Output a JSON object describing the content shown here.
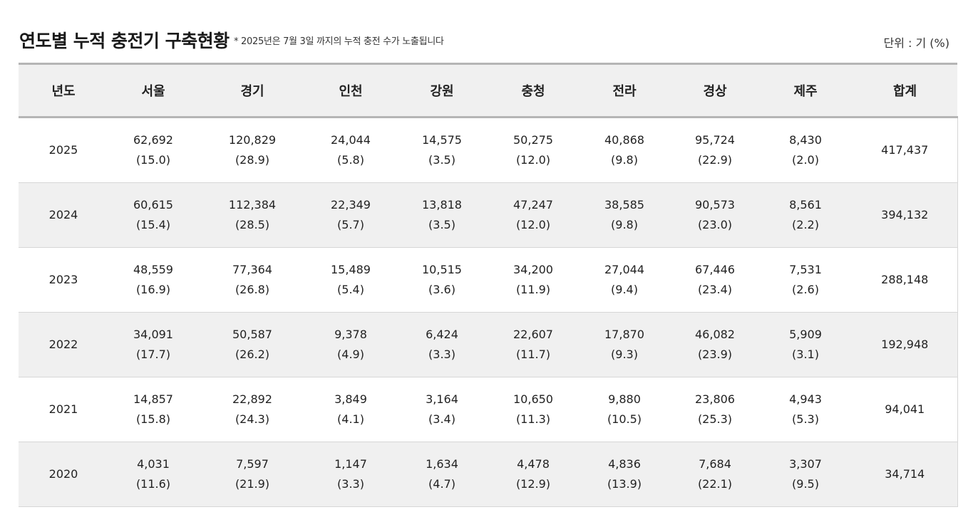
{
  "title": "연도별 누적 충전기 구축현황",
  "note": "* 2025년은 7월 3일 까지의 누적 충전 수가 노출됩니다",
  "unit": "단위 : 기 (%)",
  "table": {
    "headers": [
      "년도",
      "서울",
      "경기",
      "인천",
      "강원",
      "충청",
      "전라",
      "경상",
      "제주",
      "합계"
    ],
    "rows": [
      {
        "year": "2025",
        "cells": [
          {
            "value": "62,692",
            "pct": "(15.0)"
          },
          {
            "value": "120,829",
            "pct": "(28.9)"
          },
          {
            "value": "24,044",
            "pct": "(5.8)"
          },
          {
            "value": "14,575",
            "pct": "(3.5)"
          },
          {
            "value": "50,275",
            "pct": "(12.0)"
          },
          {
            "value": "40,868",
            "pct": "(9.8)"
          },
          {
            "value": "95,724",
            "pct": "(22.9)"
          },
          {
            "value": "8,430",
            "pct": "(2.0)"
          }
        ],
        "total": "417,437"
      },
      {
        "year": "2024",
        "cells": [
          {
            "value": "60,615",
            "pct": "(15.4)"
          },
          {
            "value": "112,384",
            "pct": "(28.5)"
          },
          {
            "value": "22,349",
            "pct": "(5.7)"
          },
          {
            "value": "13,818",
            "pct": "(3.5)"
          },
          {
            "value": "47,247",
            "pct": "(12.0)"
          },
          {
            "value": "38,585",
            "pct": "(9.8)"
          },
          {
            "value": "90,573",
            "pct": "(23.0)"
          },
          {
            "value": "8,561",
            "pct": "(2.2)"
          }
        ],
        "total": "394,132"
      },
      {
        "year": "2023",
        "cells": [
          {
            "value": "48,559",
            "pct": "(16.9)"
          },
          {
            "value": "77,364",
            "pct": "(26.8)"
          },
          {
            "value": "15,489",
            "pct": "(5.4)"
          },
          {
            "value": "10,515",
            "pct": "(3.6)"
          },
          {
            "value": "34,200",
            "pct": "(11.9)"
          },
          {
            "value": "27,044",
            "pct": "(9.4)"
          },
          {
            "value": "67,446",
            "pct": "(23.4)"
          },
          {
            "value": "7,531",
            "pct": "(2.6)"
          }
        ],
        "total": "288,148"
      },
      {
        "year": "2022",
        "cells": [
          {
            "value": "34,091",
            "pct": "(17.7)"
          },
          {
            "value": "50,587",
            "pct": "(26.2)"
          },
          {
            "value": "9,378",
            "pct": "(4.9)"
          },
          {
            "value": "6,424",
            "pct": "(3.3)"
          },
          {
            "value": "22,607",
            "pct": "(11.7)"
          },
          {
            "value": "17,870",
            "pct": "(9.3)"
          },
          {
            "value": "46,082",
            "pct": "(23.9)"
          },
          {
            "value": "5,909",
            "pct": "(3.1)"
          }
        ],
        "total": "192,948"
      },
      {
        "year": "2021",
        "cells": [
          {
            "value": "14,857",
            "pct": "(15.8)"
          },
          {
            "value": "22,892",
            "pct": "(24.3)"
          },
          {
            "value": "3,849",
            "pct": "(4.1)"
          },
          {
            "value": "3,164",
            "pct": "(3.4)"
          },
          {
            "value": "10,650",
            "pct": "(11.3)"
          },
          {
            "value": "9,880",
            "pct": "(10.5)"
          },
          {
            "value": "23,806",
            "pct": "(25.3)"
          },
          {
            "value": "4,943",
            "pct": "(5.3)"
          }
        ],
        "total": "94,041"
      },
      {
        "year": "2020",
        "cells": [
          {
            "value": "4,031",
            "pct": "(11.6)"
          },
          {
            "value": "7,597",
            "pct": "(21.9)"
          },
          {
            "value": "1,147",
            "pct": "(3.3)"
          },
          {
            "value": "1,634",
            "pct": "(4.7)"
          },
          {
            "value": "4,478",
            "pct": "(12.9)"
          },
          {
            "value": "4,836",
            "pct": "(13.9)"
          },
          {
            "value": "7,684",
            "pct": "(22.1)"
          },
          {
            "value": "3,307",
            "pct": "(9.5)"
          }
        ],
        "total": "34,714"
      }
    ]
  },
  "colors": {
    "header_bg": "#f0f0f0",
    "border": "#b5b5b5",
    "row_alt_bg": "#f0f0f0"
  }
}
